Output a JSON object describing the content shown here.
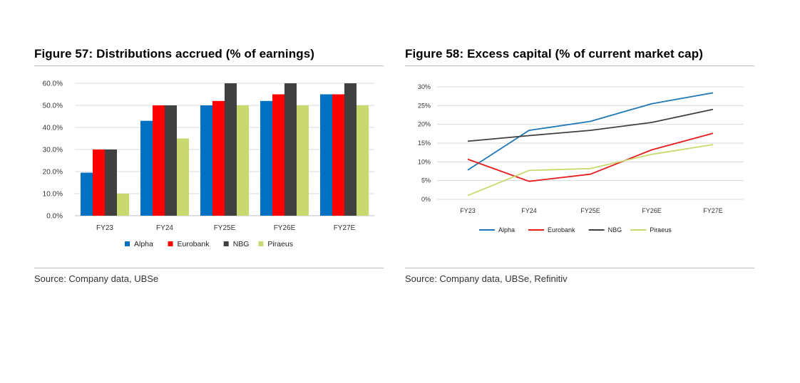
{
  "charts": [
    {
      "title": "Figure 57: Distributions accrued (% of earnings)",
      "source": "Source: Company data, UBSe",
      "chart_data": {
        "type": "bar",
        "categories": [
          "FY23",
          "FY24",
          "FY25E",
          "FY26E",
          "FY27E"
        ],
        "series": [
          {
            "name": "Alpha",
            "color": "#0070c0",
            "values": [
              19.5,
              43,
              50,
              52,
              55
            ]
          },
          {
            "name": "Eurobank",
            "color": "#ff0000",
            "values": [
              30,
              50,
              52,
              55,
              55
            ]
          },
          {
            "name": "NBG",
            "color": "#404040",
            "values": [
              30,
              50,
              60,
              60,
              60
            ]
          },
          {
            "name": "Piraeus",
            "color": "#c9d96f",
            "values": [
              10,
              35,
              50,
              50,
              50
            ]
          }
        ],
        "yticks": [
          "0.0%",
          "10.0%",
          "20.0%",
          "30.0%",
          "40.0%",
          "50.0%",
          "60.0%"
        ],
        "ylim": [
          0,
          60
        ],
        "grid": true,
        "legend": "bottom",
        "unit": "%"
      }
    },
    {
      "title": "Figure 58: Excess capital (% of current market cap)",
      "source": "Source: Company data, UBSe, Refinitiv",
      "chart_data": {
        "type": "line",
        "categories": [
          "FY23",
          "FY24",
          "FY25E",
          "FY26E",
          "FY27E"
        ],
        "series": [
          {
            "name": "Alpha",
            "color": "#1f77b4",
            "values": [
              7.8,
              18.4,
              20.8,
              25.5,
              28.4
            ]
          },
          {
            "name": "Eurobank",
            "color": "#e41a1c",
            "values": [
              10.7,
              4.8,
              6.7,
              13.2,
              17.6
            ]
          },
          {
            "name": "NBG",
            "color": "#404040",
            "values": [
              15.5,
              17.0,
              18.4,
              20.5,
              24.0
            ]
          },
          {
            "name": "Piraeus",
            "color": "#c9d96f",
            "values": [
              1.0,
              7.7,
              8.2,
              12.0,
              14.6
            ]
          }
        ],
        "yticks": [
          "0%",
          "5%",
          "10%",
          "15%",
          "20%",
          "25%",
          "30%"
        ],
        "ylim": [
          0,
          30
        ],
        "grid": true,
        "legend": "bottom",
        "unit": "%"
      }
    }
  ]
}
